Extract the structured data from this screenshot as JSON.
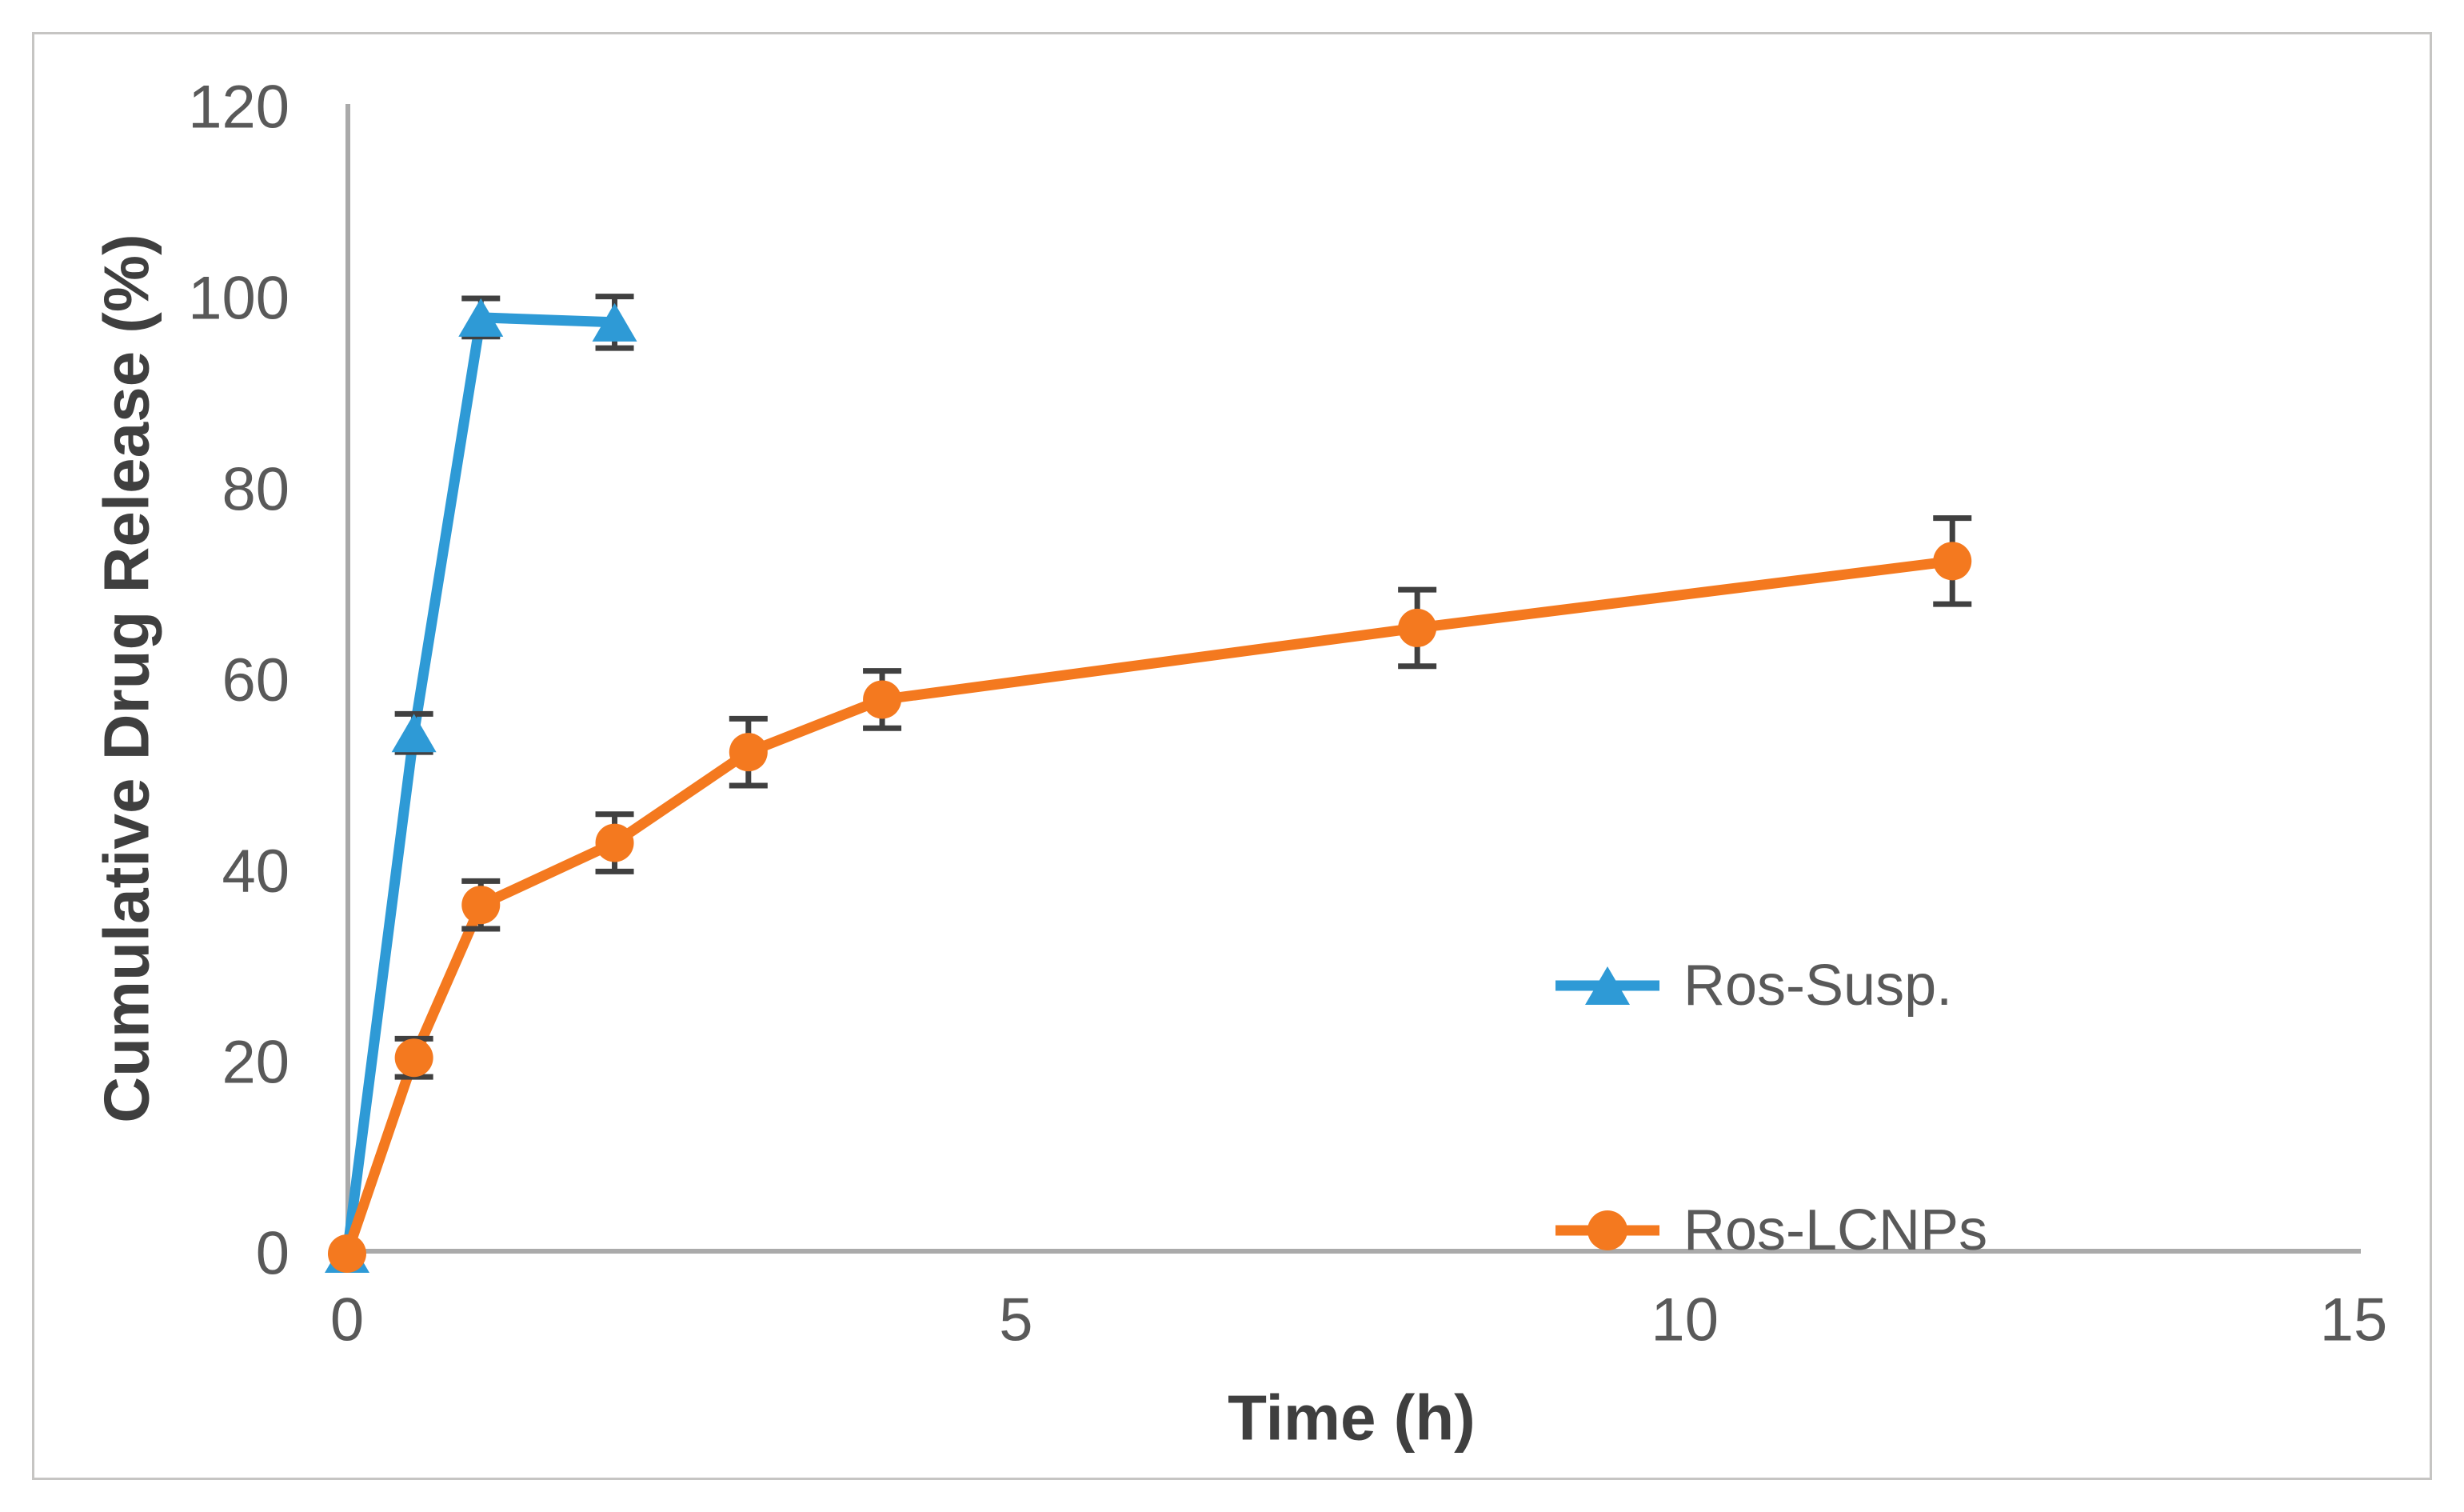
{
  "frame": {
    "border_color": "#c6c5c3",
    "background_color": "#ffffff"
  },
  "chart_data": {
    "type": "line",
    "title": "",
    "xlabel": "Time (h)",
    "ylabel": "Cumulative Drug Release (%)",
    "xlim": [
      0,
      15.5
    ],
    "ylim": [
      0,
      120
    ],
    "xticks": [
      0,
      5,
      10,
      15
    ],
    "yticks": [
      0,
      20,
      40,
      60,
      80,
      100,
      120
    ],
    "grid": false,
    "legend_position": "middle-right",
    "axis_color": "#aaaaaa",
    "error_bar_color": "#404040",
    "tick_label_color": "#595959",
    "axis_title_color": "#3f3f3f",
    "series": [
      {
        "name": "Ros-Susp.",
        "color": "#2e9ad6",
        "marker": "triangle",
        "x": [
          0,
          0.5,
          1,
          2
        ],
        "y": [
          0,
          54.5,
          98,
          97.5
        ],
        "yerr": [
          0,
          2,
          2,
          2.7
        ]
      },
      {
        "name": "Ros-LCNPs",
        "color": "#f4791f",
        "marker": "circle",
        "x": [
          0,
          0.5,
          1,
          2,
          3,
          4,
          8,
          12
        ],
        "y": [
          0,
          20.5,
          36.5,
          43,
          52.5,
          58,
          65.5,
          72.5
        ],
        "yerr": [
          0,
          2,
          2.5,
          3,
          3.5,
          3,
          4,
          4.5
        ]
      }
    ]
  }
}
